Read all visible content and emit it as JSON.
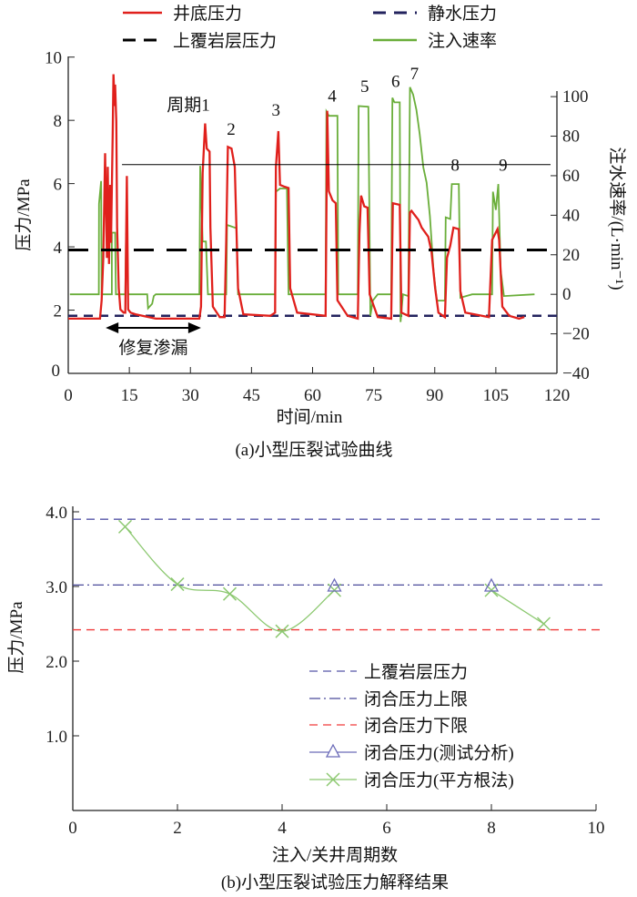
{
  "chart_data": [
    {
      "type": "line",
      "title": "(a)小型压裂试验曲线",
      "xlabel": "时间/min",
      "ylabel": "压力/MPa",
      "y2label": "注水速率/(L·min⁻¹)",
      "xlim": [
        0,
        120
      ],
      "ylim": [
        0,
        10
      ],
      "y2lim": [
        -40,
        120
      ],
      "xticks": [
        "0",
        "15",
        "30",
        "45",
        "60",
        "75",
        "90",
        "105",
        "120"
      ],
      "yticks": [
        "2",
        "4",
        "6",
        "8",
        "10"
      ],
      "y2ticks": [
        "−40",
        "−20",
        "0",
        "20",
        "40",
        "60",
        "80",
        "100"
      ],
      "legend": {
        "placement": "top",
        "items": [
          "井底压力",
          "静水压力",
          "上覆岩层压力",
          "注入速率"
        ]
      },
      "colors": {
        "bottomhole": "#e0201c",
        "hydrostatic": "#23235e",
        "overburden": "#000000",
        "injection": "#6aae3a"
      },
      "reference_lines": {
        "overburden_mpa": 3.9,
        "hydrostatic_mpa": 1.82,
        "thin_line_mpa": 6.6,
        "thin_line_start_min": 13.2
      },
      "annotations": [
        {
          "text": "周期1",
          "x": 29.5,
          "y": 8.3
        },
        {
          "text": "2",
          "x": 40.0,
          "y": 7.55
        },
        {
          "text": "3",
          "x": 51.0,
          "y": 8.15
        },
        {
          "text": "4",
          "x": 64.8,
          "y": 8.6
        },
        {
          "text": "5",
          "x": 72.8,
          "y": 8.9
        },
        {
          "text": "6",
          "x": 80.4,
          "y": 9.05
        },
        {
          "text": "7",
          "x": 85.0,
          "y": 9.3
        },
        {
          "text": "8",
          "x": 95.0,
          "y": 6.4
        },
        {
          "text": "9",
          "x": 106.8,
          "y": 6.4
        }
      ],
      "leak_repair": {
        "text": "修复渗漏",
        "from": 9.2,
        "to": 32.6,
        "y": 1.44
      },
      "series": [
        {
          "name": "井底压力",
          "axis": "left",
          "points": [
            [
              0,
              1.73
            ],
            [
              7.8,
              1.73
            ],
            [
              8.2,
              2.31
            ],
            [
              8.6,
              3.65
            ],
            [
              9.05,
              6.96
            ],
            [
              9.5,
              3.65
            ],
            [
              9.7,
              6.53
            ],
            [
              10.0,
              3.46
            ],
            [
              10.3,
              5.96
            ],
            [
              10.5,
              4.13
            ],
            [
              10.9,
              7.49
            ],
            [
              11.1,
              9.46
            ],
            [
              11.4,
              8.45
            ],
            [
              11.5,
              9.13
            ],
            [
              11.8,
              7.97
            ],
            [
              12.0,
              4.61
            ],
            [
              12.4,
              2.69
            ],
            [
              12.8,
              2.02
            ],
            [
              13.6,
              1.92
            ],
            [
              14.0,
              1.92
            ],
            [
              14.4,
              6.24
            ],
            [
              14.7,
              2.02
            ],
            [
              15.3,
              1.92
            ],
            [
              16.5,
              1.87
            ],
            [
              21.5,
              1.73
            ],
            [
              32.2,
              1.73
            ],
            [
              32.6,
              2.11
            ],
            [
              33.0,
              6.34
            ],
            [
              33.6,
              7.9
            ],
            [
              34.0,
              7.11
            ],
            [
              34.7,
              7.01
            ],
            [
              34.9,
              4.61
            ],
            [
              35.5,
              2.11
            ],
            [
              37.2,
              1.78
            ],
            [
              38.4,
              1.78
            ],
            [
              38.8,
              4.22
            ],
            [
              39.2,
              7.16
            ],
            [
              40.1,
              7.11
            ],
            [
              40.9,
              6.53
            ],
            [
              41.7,
              2.69
            ],
            [
              43.0,
              1.87
            ],
            [
              49.6,
              1.82
            ],
            [
              50.8,
              1.92
            ],
            [
              51.0,
              6.53
            ],
            [
              51.6,
              7.66
            ],
            [
              52.0,
              5.96
            ],
            [
              52.9,
              5.91
            ],
            [
              54.1,
              5.86
            ],
            [
              54.5,
              2.69
            ],
            [
              56.2,
              1.92
            ],
            [
              63.2,
              1.82
            ],
            [
              63.6,
              8.3
            ],
            [
              64.0,
              5.76
            ],
            [
              64.9,
              5.47
            ],
            [
              65.7,
              5.38
            ],
            [
              66.1,
              2.31
            ],
            [
              68.6,
              1.82
            ],
            [
              71.1,
              1.73
            ],
            [
              71.5,
              4.42
            ],
            [
              71.9,
              5.62
            ],
            [
              72.7,
              5.28
            ],
            [
              73.5,
              5.24
            ],
            [
              74.0,
              2.5
            ],
            [
              76.0,
              1.78
            ],
            [
              79.3,
              1.73
            ],
            [
              79.7,
              5.38
            ],
            [
              81.4,
              5.33
            ],
            [
              81.8,
              1.92
            ],
            [
              83.5,
              1.82
            ],
            [
              83.9,
              5.09
            ],
            [
              84.3,
              5.14
            ],
            [
              86.0,
              4.85
            ],
            [
              86.8,
              4.61
            ],
            [
              88.4,
              4.32
            ],
            [
              89.2,
              3.84
            ],
            [
              90.1,
              2.69
            ],
            [
              90.9,
              1.92
            ],
            [
              92.5,
              1.78
            ],
            [
              93.0,
              3.65
            ],
            [
              93.8,
              4.04
            ],
            [
              94.6,
              4.61
            ],
            [
              95.9,
              4.56
            ],
            [
              96.3,
              2.6
            ],
            [
              97.5,
              1.92
            ],
            [
              103.3,
              1.78
            ],
            [
              104.1,
              4.22
            ],
            [
              105.4,
              4.56
            ],
            [
              105.8,
              4.22
            ],
            [
              106.6,
              2.11
            ],
            [
              108.3,
              1.82
            ],
            [
              110.7,
              1.73
            ],
            [
              112.0,
              1.78
            ]
          ]
        },
        {
          "name": "注入速率",
          "axis": "right",
          "points": [
            [
              0.4,
              0
            ],
            [
              7.5,
              0
            ],
            [
              7.56,
              45.8
            ],
            [
              8.06,
              57.3
            ],
            [
              8.2,
              0
            ],
            [
              10.7,
              0
            ],
            [
              10.7,
              31.2
            ],
            [
              11.5,
              31.2
            ],
            [
              11.7,
              0
            ],
            [
              14.0,
              0
            ],
            [
              14.2,
              31.2
            ],
            [
              14.7,
              0
            ],
            [
              19.4,
              0
            ],
            [
              19.6,
              -7.1
            ],
            [
              20.6,
              -4.8
            ],
            [
              21.0,
              -0.9
            ],
            [
              21.5,
              0
            ],
            [
              32.2,
              0
            ],
            [
              32.4,
              65
            ],
            [
              33.0,
              26.7
            ],
            [
              33.8,
              26.7
            ],
            [
              34.3,
              0
            ],
            [
              38.8,
              0
            ],
            [
              39.0,
              35.1
            ],
            [
              41.3,
              33.5
            ],
            [
              41.7,
              0
            ],
            [
              50.8,
              0
            ],
            [
              51.0,
              51.9
            ],
            [
              52.0,
              53.5
            ],
            [
              53.7,
              53.5
            ],
            [
              54.1,
              0
            ],
            [
              63.2,
              0
            ],
            [
              63.4,
              92.5
            ],
            [
              64.0,
              90.3
            ],
            [
              66.1,
              90.3
            ],
            [
              66.3,
              0
            ],
            [
              71.1,
              0
            ],
            [
              71.3,
              95.2
            ],
            [
              73.7,
              94.9
            ],
            [
              74.2,
              -10.9
            ],
            [
              74.8,
              -3.2
            ],
            [
              76.0,
              0
            ],
            [
              79.3,
              0
            ],
            [
              79.6,
              99.4
            ],
            [
              80.1,
              97.1
            ],
            [
              81.4,
              97.1
            ],
            [
              81.6,
              -14
            ],
            [
              82.2,
              0
            ],
            [
              83.5,
              -0.9
            ],
            [
              83.9,
              104.8
            ],
            [
              84.7,
              101
            ],
            [
              85.5,
              93.3
            ],
            [
              86.3,
              81.1
            ],
            [
              87.2,
              64.2
            ],
            [
              88.0,
              56.5
            ],
            [
              88.8,
              39.7
            ],
            [
              89.7,
              12.1
            ],
            [
              90.5,
              -3.2
            ],
            [
              92.5,
              -3.2
            ],
            [
              92.7,
              38.9
            ],
            [
              93.8,
              38.1
            ],
            [
              94.2,
              55.8
            ],
            [
              95.9,
              55.8
            ],
            [
              96.3,
              -1.7
            ],
            [
              99.2,
              0
            ],
            [
              104.1,
              0
            ],
            [
              104.3,
              51.9
            ],
            [
              105.0,
              42.7
            ],
            [
              105.6,
              55.8
            ],
            [
              106.2,
              12.1
            ],
            [
              107.0,
              -0.9
            ],
            [
              114.5,
              0
            ]
          ]
        }
      ]
    },
    {
      "type": "line",
      "title": "(b)小型压裂试验压力解释结果",
      "xlabel": "注入/关井周期数",
      "ylabel": "压力/MPa",
      "xlim": [
        0,
        10
      ],
      "ylim": [
        0,
        4.0
      ],
      "xticks": [
        "0",
        "2",
        "4",
        "6",
        "8",
        "10"
      ],
      "yticks": [
        "1.0",
        "2.0",
        "3.0",
        "4.0"
      ],
      "legend": {
        "placement": "lower-right",
        "items": [
          "上覆岩层压力",
          "闭合压力上限",
          "闭合压力下限",
          "闭合压力(测试分析)",
          "闭合压力(平方根法)"
        ]
      },
      "colors": {
        "overburden": "#5656a8",
        "upper": "#4a4a9a",
        "lower": "#f03a3a",
        "test": "#6a6ab8",
        "sqrt": "#8cc870"
      },
      "overburden": 3.9,
      "closure_upper": 3.02,
      "closure_lower": 2.42,
      "test_analysis": [
        [
          5,
          3.0
        ],
        [
          8,
          3.0
        ]
      ],
      "sqrt_method": [
        [
          [
            1,
            3.8
          ],
          [
            2,
            3.03
          ],
          [
            3,
            2.9
          ],
          [
            4,
            2.4
          ],
          [
            5,
            2.95
          ]
        ],
        [
          [
            8,
            2.95
          ],
          [
            9,
            2.5
          ]
        ]
      ]
    }
  ]
}
